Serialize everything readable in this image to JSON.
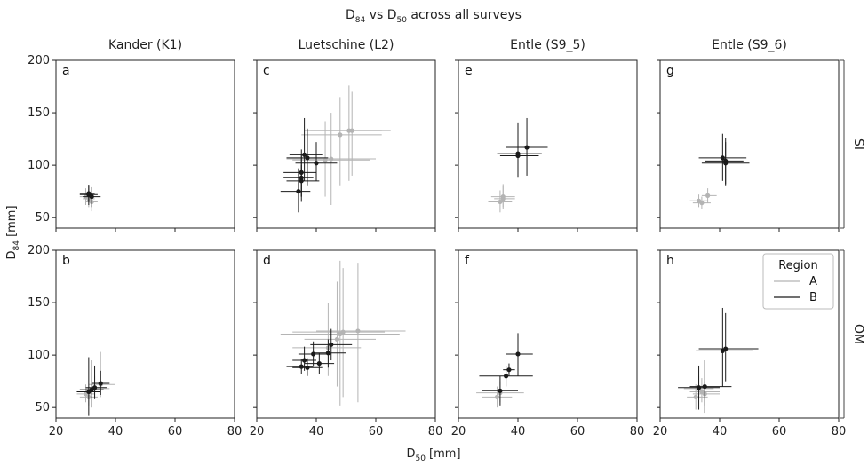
{
  "chart_data": {
    "type": "scatter",
    "title_parts": {
      "d84_base": "D",
      "d84_sub": "84",
      "vs": " vs ",
      "d50_base": "D",
      "d50_sub": "50",
      "tail": "  across all surveys"
    },
    "xlabel_parts": {
      "base": "D",
      "sub": "50",
      "unit": " [mm]"
    },
    "ylabel_parts": {
      "base": "D",
      "sub": "84",
      "unit": " [mm]"
    },
    "xlim": [
      20,
      80
    ],
    "ylim": [
      40,
      200
    ],
    "xticks": [
      20,
      40,
      60,
      80
    ],
    "yticks": [
      50,
      100,
      150,
      200
    ],
    "columns": [
      "Kander (K1)",
      "Luetschine (L2)",
      "Entle (S9_5)",
      "Entle (S9_6)"
    ],
    "rows": [
      "SI",
      "OM"
    ],
    "grid": false,
    "legend": {
      "title": "Region",
      "placement": "upper-right",
      "panel": "h",
      "entries": [
        "A",
        "B"
      ]
    },
    "colors": {
      "A": "#b4b4b4",
      "B": "#1a1a1a"
    },
    "panels": [
      {
        "letter": "a",
        "row": 0,
        "col": 0,
        "points": [
          {
            "region": "A",
            "x": 31,
            "y": 68,
            "xlo": 29,
            "xhi": 33,
            "ylo": 60,
            "yhi": 77
          },
          {
            "region": "A",
            "x": 32,
            "y": 65,
            "xlo": 30,
            "xhi": 34,
            "ylo": 56,
            "yhi": 74
          },
          {
            "region": "A",
            "x": 30,
            "y": 70,
            "xlo": 28,
            "xhi": 33,
            "ylo": 62,
            "yhi": 78
          },
          {
            "region": "B",
            "x": 31,
            "y": 72,
            "xlo": 28,
            "xhi": 34,
            "ylo": 62,
            "yhi": 80
          },
          {
            "region": "B",
            "x": 32,
            "y": 70,
            "xlo": 29,
            "xhi": 35,
            "ylo": 60,
            "yhi": 79
          },
          {
            "region": "B",
            "x": 31,
            "y": 73,
            "xlo": 28,
            "xhi": 33,
            "ylo": 65,
            "yhi": 81
          }
        ]
      },
      {
        "letter": "b",
        "row": 1,
        "col": 0,
        "points": [
          {
            "region": "A",
            "x": 31,
            "y": 60,
            "xlo": 28,
            "xhi": 34,
            "ylo": 52,
            "yhi": 70
          },
          {
            "region": "A",
            "x": 33,
            "y": 68,
            "xlo": 30,
            "xhi": 38,
            "ylo": 58,
            "yhi": 80
          },
          {
            "region": "A",
            "x": 35,
            "y": 72,
            "xlo": 31,
            "xhi": 40,
            "ylo": 60,
            "yhi": 103
          },
          {
            "region": "A",
            "x": 30,
            "y": 63,
            "xlo": 27,
            "xhi": 33,
            "ylo": 55,
            "yhi": 72
          },
          {
            "region": "B",
            "x": 31,
            "y": 65,
            "xlo": 27,
            "xhi": 35,
            "ylo": 42,
            "yhi": 98
          },
          {
            "region": "B",
            "x": 32,
            "y": 67,
            "xlo": 28,
            "xhi": 36,
            "ylo": 50,
            "yhi": 95
          },
          {
            "region": "B",
            "x": 35,
            "y": 73,
            "xlo": 32,
            "xhi": 38,
            "ylo": 62,
            "yhi": 85
          },
          {
            "region": "B",
            "x": 33,
            "y": 69,
            "xlo": 30,
            "xhi": 37,
            "ylo": 58,
            "yhi": 90
          }
        ]
      },
      {
        "letter": "c",
        "row": 0,
        "col": 1,
        "points": [
          {
            "region": "A",
            "x": 48,
            "y": 129,
            "xlo": 35,
            "xhi": 62,
            "ylo": 80,
            "yhi": 165
          },
          {
            "region": "A",
            "x": 51,
            "y": 133,
            "xlo": 36,
            "xhi": 65,
            "ylo": 85,
            "yhi": 176
          },
          {
            "region": "A",
            "x": 45,
            "y": 106,
            "xlo": 30,
            "xhi": 60,
            "ylo": 62,
            "yhi": 150
          },
          {
            "region": "A",
            "x": 43,
            "y": 105,
            "xlo": 32,
            "xhi": 58,
            "ylo": 70,
            "yhi": 142
          },
          {
            "region": "A",
            "x": 52,
            "y": 133,
            "xlo": 38,
            "xhi": 62,
            "ylo": 90,
            "yhi": 170
          },
          {
            "region": "B",
            "x": 37,
            "y": 107,
            "xlo": 30,
            "xhi": 44,
            "ylo": 80,
            "yhi": 135
          },
          {
            "region": "B",
            "x": 36,
            "y": 110,
            "xlo": 31,
            "xhi": 42,
            "ylo": 85,
            "yhi": 145
          },
          {
            "region": "B",
            "x": 40,
            "y": 102,
            "xlo": 33,
            "xhi": 47,
            "ylo": 85,
            "yhi": 122
          },
          {
            "region": "B",
            "x": 35,
            "y": 93,
            "xlo": 29,
            "xhi": 40,
            "ylo": 70,
            "yhi": 115
          },
          {
            "region": "B",
            "x": 35,
            "y": 85,
            "xlo": 30,
            "xhi": 41,
            "ylo": 70,
            "yhi": 100
          },
          {
            "region": "B",
            "x": 34,
            "y": 75,
            "xlo": 28,
            "xhi": 38,
            "ylo": 55,
            "yhi": 97
          },
          {
            "region": "B",
            "x": 35,
            "y": 88,
            "xlo": 29,
            "xhi": 39,
            "ylo": 65,
            "yhi": 110
          }
        ]
      },
      {
        "letter": "d",
        "row": 1,
        "col": 1,
        "points": [
          {
            "region": "A",
            "x": 48,
            "y": 120,
            "xlo": 28,
            "xhi": 68,
            "ylo": 52,
            "yhi": 190
          },
          {
            "region": "A",
            "x": 54,
            "y": 123,
            "xlo": 40,
            "xhi": 70,
            "ylo": 55,
            "yhi": 188
          },
          {
            "region": "A",
            "x": 49,
            "y": 122,
            "xlo": 32,
            "xhi": 63,
            "ylo": 60,
            "yhi": 183
          },
          {
            "region": "A",
            "x": 47,
            "y": 115,
            "xlo": 36,
            "xhi": 60,
            "ylo": 70,
            "yhi": 170
          },
          {
            "region": "A",
            "x": 44,
            "y": 107,
            "xlo": 32,
            "xhi": 55,
            "ylo": 80,
            "yhi": 150
          },
          {
            "region": "B",
            "x": 36,
            "y": 95,
            "xlo": 32,
            "xhi": 40,
            "ylo": 85,
            "yhi": 108
          },
          {
            "region": "B",
            "x": 39,
            "y": 101,
            "xlo": 34,
            "xhi": 45,
            "ylo": 90,
            "yhi": 113
          },
          {
            "region": "B",
            "x": 45,
            "y": 110,
            "xlo": 38,
            "xhi": 52,
            "ylo": 95,
            "yhi": 125
          },
          {
            "region": "B",
            "x": 41,
            "y": 92,
            "xlo": 36,
            "xhi": 46,
            "ylo": 82,
            "yhi": 102
          },
          {
            "region": "B",
            "x": 37,
            "y": 88,
            "xlo": 32,
            "xhi": 42,
            "ylo": 80,
            "yhi": 97
          },
          {
            "region": "B",
            "x": 35,
            "y": 89,
            "xlo": 30,
            "xhi": 39,
            "ylo": 82,
            "yhi": 96
          },
          {
            "region": "B",
            "x": 44,
            "y": 102,
            "xlo": 39,
            "xhi": 50,
            "ylo": 88,
            "yhi": 115
          }
        ]
      },
      {
        "letter": "e",
        "row": 0,
        "col": 2,
        "points": [
          {
            "region": "A",
            "x": 35,
            "y": 70,
            "xlo": 31,
            "xhi": 39,
            "ylo": 60,
            "yhi": 80
          },
          {
            "region": "A",
            "x": 34,
            "y": 65,
            "xlo": 30,
            "xhi": 38,
            "ylo": 55,
            "yhi": 76
          },
          {
            "region": "A",
            "x": 35,
            "y": 68,
            "xlo": 32,
            "xhi": 39,
            "ylo": 58,
            "yhi": 82
          },
          {
            "region": "B",
            "x": 43,
            "y": 117,
            "xlo": 36,
            "xhi": 50,
            "ylo": 90,
            "yhi": 145
          },
          {
            "region": "B",
            "x": 40,
            "y": 111,
            "xlo": 33,
            "xhi": 48,
            "ylo": 90,
            "yhi": 140
          },
          {
            "region": "B",
            "x": 40,
            "y": 109,
            "xlo": 34,
            "xhi": 47,
            "ylo": 88,
            "yhi": 135
          }
        ]
      },
      {
        "letter": "f",
        "row": 1,
        "col": 2,
        "points": [
          {
            "region": "A",
            "x": 34,
            "y": 64,
            "xlo": 26,
            "xhi": 42,
            "ylo": 55,
            "yhi": 75
          },
          {
            "region": "A",
            "x": 33,
            "y": 60,
            "xlo": 28,
            "xhi": 38,
            "ylo": 50,
            "yhi": 70
          },
          {
            "region": "B",
            "x": 34,
            "y": 66,
            "xlo": 28,
            "xhi": 40,
            "ylo": 52,
            "yhi": 80
          },
          {
            "region": "B",
            "x": 36,
            "y": 80,
            "xlo": 27,
            "xhi": 45,
            "ylo": 70,
            "yhi": 90
          },
          {
            "region": "B",
            "x": 37,
            "y": 86,
            "xlo": 35,
            "xhi": 39,
            "ylo": 80,
            "yhi": 92
          },
          {
            "region": "B",
            "x": 40,
            "y": 101,
            "xlo": 36,
            "xhi": 45,
            "ylo": 80,
            "yhi": 121
          }
        ]
      },
      {
        "letter": "g",
        "row": 0,
        "col": 3,
        "points": [
          {
            "region": "A",
            "x": 33,
            "y": 66,
            "xlo": 30,
            "xhi": 36,
            "ylo": 60,
            "yhi": 72
          },
          {
            "region": "A",
            "x": 36,
            "y": 71,
            "xlo": 34,
            "xhi": 39,
            "ylo": 64,
            "yhi": 78
          },
          {
            "region": "A",
            "x": 34,
            "y": 64,
            "xlo": 31,
            "xhi": 37,
            "ylo": 58,
            "yhi": 70
          },
          {
            "region": "B",
            "x": 41,
            "y": 107,
            "xlo": 33,
            "xhi": 49,
            "ylo": 85,
            "yhi": 130
          },
          {
            "region": "B",
            "x": 42,
            "y": 104,
            "xlo": 35,
            "xhi": 48,
            "ylo": 82,
            "yhi": 126
          },
          {
            "region": "B",
            "x": 42,
            "y": 102,
            "xlo": 34,
            "xhi": 50,
            "ylo": 80,
            "yhi": 122
          }
        ]
      },
      {
        "letter": "h",
        "row": 1,
        "col": 3,
        "points": [
          {
            "region": "A",
            "x": 33,
            "y": 68,
            "xlo": 28,
            "xhi": 38,
            "ylo": 58,
            "yhi": 80
          },
          {
            "region": "A",
            "x": 34,
            "y": 65,
            "xlo": 30,
            "xhi": 40,
            "ylo": 55,
            "yhi": 78
          },
          {
            "region": "A",
            "x": 35,
            "y": 63,
            "xlo": 31,
            "xhi": 40,
            "ylo": 52,
            "yhi": 75
          },
          {
            "region": "A",
            "x": 32,
            "y": 60,
            "xlo": 29,
            "xhi": 36,
            "ylo": 48,
            "yhi": 72
          },
          {
            "region": "B",
            "x": 33,
            "y": 69,
            "xlo": 26,
            "xhi": 40,
            "ylo": 48,
            "yhi": 90
          },
          {
            "region": "B",
            "x": 35,
            "y": 70,
            "xlo": 30,
            "xhi": 44,
            "ylo": 45,
            "yhi": 95
          },
          {
            "region": "B",
            "x": 41,
            "y": 104,
            "xlo": 32,
            "xhi": 51,
            "ylo": 70,
            "yhi": 145
          },
          {
            "region": "B",
            "x": 42,
            "y": 106,
            "xlo": 33,
            "xhi": 53,
            "ylo": 75,
            "yhi": 140
          }
        ]
      }
    ]
  }
}
